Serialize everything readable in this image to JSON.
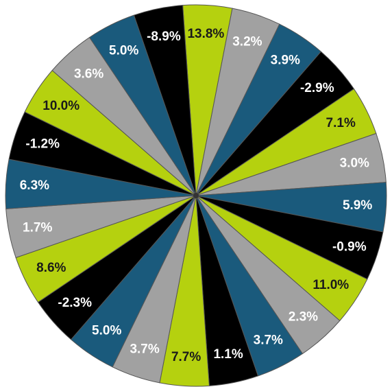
{
  "chart_data": {
    "type": "pie",
    "title": "",
    "equal_slices": true,
    "start": "top, clockwise",
    "label_suffix": "%",
    "colors": {
      "lime": "#b5d10f",
      "gray": "#a1a1a1",
      "teal": "#1a5a7c",
      "black": "#000000"
    },
    "slices": [
      {
        "value": 13.8,
        "label": "13.8%",
        "color": "lime"
      },
      {
        "value": 3.2,
        "label": "3.2%",
        "color": "gray"
      },
      {
        "value": 3.9,
        "label": "3.9%",
        "color": "teal"
      },
      {
        "value": -2.9,
        "label": "-2.9%",
        "color": "black"
      },
      {
        "value": 7.1,
        "label": "7.1%",
        "color": "lime"
      },
      {
        "value": 3.0,
        "label": "3.0%",
        "color": "gray"
      },
      {
        "value": 5.9,
        "label": "5.9%",
        "color": "teal"
      },
      {
        "value": -0.9,
        "label": "-0.9%",
        "color": "black"
      },
      {
        "value": 11.0,
        "label": "11.0%",
        "color": "lime"
      },
      {
        "value": 2.3,
        "label": "2.3%",
        "color": "gray"
      },
      {
        "value": 3.7,
        "label": "3.7%",
        "color": "teal"
      },
      {
        "value": 1.1,
        "label": "1.1%",
        "color": "black"
      },
      {
        "value": 7.7,
        "label": "7.7%",
        "color": "lime"
      },
      {
        "value": 3.7,
        "label": "3.7%",
        "color": "gray"
      },
      {
        "value": 5.0,
        "label": "5.0%",
        "color": "teal"
      },
      {
        "value": -2.3,
        "label": "-2.3%",
        "color": "black"
      },
      {
        "value": 8.6,
        "label": "8.6%",
        "color": "lime"
      },
      {
        "value": 1.7,
        "label": "1.7%",
        "color": "gray"
      },
      {
        "value": 6.3,
        "label": "6.3%",
        "color": "teal"
      },
      {
        "value": -1.2,
        "label": "-1.2%",
        "color": "black"
      },
      {
        "value": 10.0,
        "label": "10.0%",
        "color": "lime"
      },
      {
        "value": 3.6,
        "label": "3.6%",
        "color": "gray"
      },
      {
        "value": 5.0,
        "label": "5.0%",
        "color": "teal"
      },
      {
        "value": -8.9,
        "label": "-8.9%",
        "color": "black"
      }
    ]
  }
}
